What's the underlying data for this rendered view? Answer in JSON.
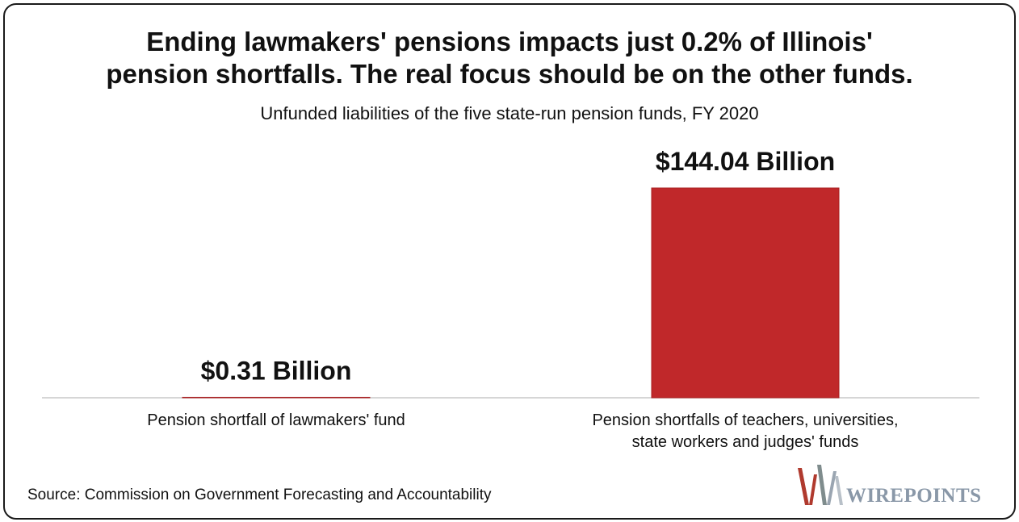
{
  "title_lines": [
    "Ending lawmakers' pensions impacts just 0.2% of Illinois'",
    "pension shortfalls. The real focus should be on the other funds."
  ],
  "subtitle": "Unfunded liabilities of the five state-run pension funds, FY 2020",
  "source": "Source: Commission on Government Forecasting and Accountability",
  "logo": {
    "text": "WIREPOINTS",
    "colors": [
      "#b03a2e",
      "#7f8c8d",
      "#9aa5b1"
    ]
  },
  "chart_data": {
    "type": "bar",
    "categories": [
      "Pension shortfall of lawmakers' fund",
      "Pension shortfalls of teachers, universities, state workers and judges' funds"
    ],
    "category_label_lines": [
      [
        "Pension shortfall of lawmakers' fund"
      ],
      [
        "Pension shortfalls of teachers, universities,",
        "state workers and judges' funds"
      ]
    ],
    "values": [
      0.31,
      144.04
    ],
    "data_labels": [
      "$0.31 Billion",
      "$144.04 Billion"
    ],
    "title": "Ending lawmakers' pensions impacts just 0.2% of Illinois' pension shortfalls. The real focus should be on the other funds.",
    "subtitle": "Unfunded liabilities of the five state-run pension funds, FY 2020",
    "xlabel": "",
    "ylabel": "",
    "ylim": [
      0,
      144.04
    ],
    "grid": false,
    "legend": "none",
    "bar_color": "#c0282a"
  }
}
